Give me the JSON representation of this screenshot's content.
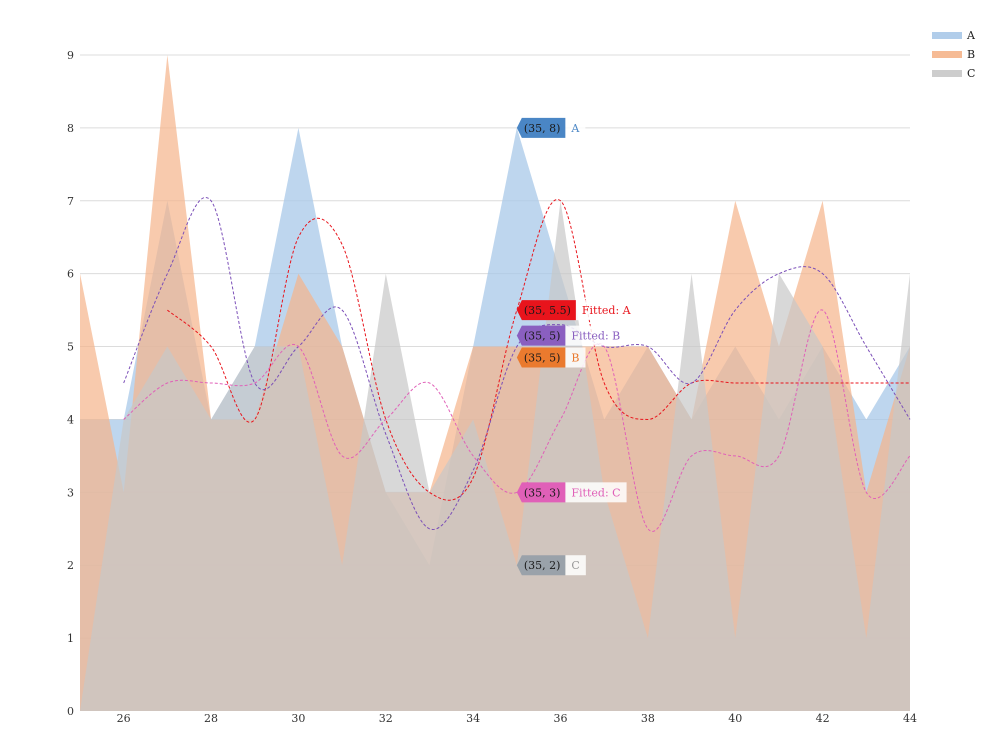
{
  "chart_data": {
    "type": "area",
    "title": "",
    "xlabel": "",
    "ylabel": "",
    "xlim": [
      25,
      44
    ],
    "ylim": [
      0,
      9
    ],
    "x_ticks": [
      26,
      28,
      30,
      32,
      34,
      36,
      38,
      40,
      42,
      44
    ],
    "y_ticks": [
      0,
      1,
      2,
      3,
      4,
      5,
      6,
      7,
      8,
      9
    ],
    "grid": true,
    "legend_position": "top-right",
    "x": [
      25,
      26,
      27,
      28,
      29,
      30,
      31,
      32,
      33,
      34,
      35,
      36,
      37,
      38,
      39,
      40,
      41,
      42,
      43,
      44
    ],
    "series": [
      {
        "name": "A",
        "color": "#a8c8e8",
        "opacity": 0.75,
        "values": [
          4,
          4,
          7,
          4,
          5,
          8,
          5,
          3,
          2,
          5,
          8,
          6,
          4,
          5,
          4,
          5,
          4,
          5,
          4,
          5
        ]
      },
      {
        "name": "B",
        "color": "#f5b48a",
        "opacity": 0.7,
        "values": [
          6,
          3,
          9,
          4,
          4,
          6,
          5,
          3,
          3,
          5,
          5,
          5,
          5,
          5,
          4,
          7,
          5,
          7,
          3,
          5
        ]
      },
      {
        "name": "C",
        "color": "#c8c8c8",
        "opacity": 0.7,
        "values": [
          0,
          4,
          5,
          4,
          5,
          5,
          2,
          6,
          3,
          4,
          2,
          7,
          3,
          1,
          6,
          1,
          6,
          5,
          1,
          6
        ]
      }
    ],
    "fitted": [
      {
        "name": "Fitted: A",
        "color": "#e8141c",
        "x": [
          27,
          28,
          29,
          30,
          31,
          32,
          33,
          34,
          35,
          36,
          37,
          38,
          39,
          40,
          41,
          42,
          43,
          44
        ],
        "values": [
          5.5,
          5.0,
          4.0,
          6.5,
          6.4,
          4.0,
          3.0,
          3.2,
          5.5,
          7.0,
          4.5,
          4.0,
          4.5,
          4.5,
          4.5,
          4.5,
          4.5,
          4.5
        ]
      },
      {
        "name": "Fitted: B",
        "color": "#7b4fb8",
        "x": [
          26,
          27,
          28,
          29,
          30,
          31,
          32,
          33,
          34,
          35,
          36,
          37,
          38,
          39,
          40,
          41,
          42,
          43,
          44
        ],
        "values": [
          4.5,
          6.0,
          7.0,
          4.5,
          5.0,
          5.5,
          3.8,
          2.5,
          3.3,
          5.0,
          5.3,
          5.0,
          5.0,
          4.5,
          5.5,
          6.0,
          6.0,
          5.0,
          4.0
        ]
      },
      {
        "name": "Fitted: C",
        "color": "#e060b8",
        "x": [
          26,
          27,
          28,
          29,
          30,
          31,
          32,
          33,
          34,
          35,
          36,
          37,
          38,
          39,
          40,
          41,
          42,
          43,
          44
        ],
        "values": [
          4.0,
          4.5,
          4.5,
          4.5,
          5.0,
          3.5,
          4.0,
          4.5,
          3.5,
          3.0,
          4.0,
          5.0,
          2.5,
          3.5,
          3.5,
          3.5,
          5.5,
          3.0,
          3.5
        ]
      }
    ],
    "tooltips": [
      {
        "coord": "(35, 8)",
        "label": "A",
        "y": 8,
        "color": "#4a86c5",
        "label_color": "#4a86c5"
      },
      {
        "coord": "(35, 5.5)",
        "label": "Fitted: A",
        "y": 5.5,
        "color": "#e8141c",
        "label_color": "#e8141c"
      },
      {
        "coord": "(35, 5)",
        "label": "Fitted: B",
        "y": 5.15,
        "color": "#8a5fc0",
        "label_color": "#8a5fc0"
      },
      {
        "coord": "(35, 5)",
        "label": "B",
        "y": 4.85,
        "color": "#ea7a2e",
        "label_color": "#ea7a2e"
      },
      {
        "coord": "(35, 3)",
        "label": "Fitted: C",
        "y": 3,
        "color": "#e060b8",
        "label_color": "#e060b8"
      },
      {
        "coord": "(35, 2)",
        "label": "C",
        "y": 2,
        "color": "#9aa2aa",
        "label_color": "#9a9a9a"
      }
    ]
  }
}
